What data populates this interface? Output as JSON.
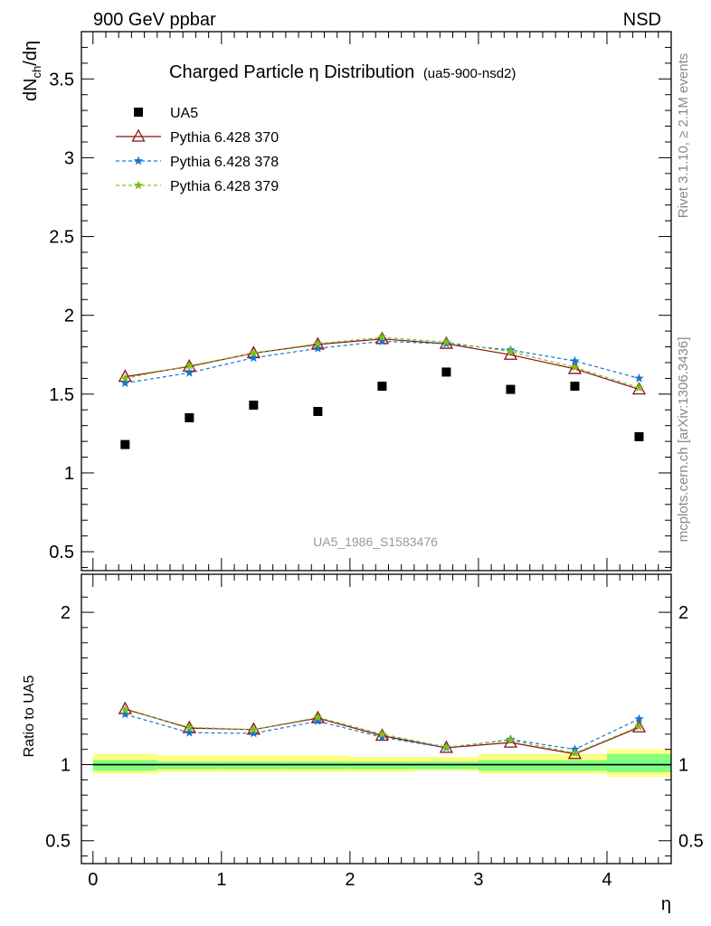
{
  "header": {
    "left_label": "900 GeV ppbar",
    "right_label": "NSD"
  },
  "side_labels": {
    "rivet": "Rivet 3.1.10, ≥ 2.1M events",
    "mcplots": "mcplots.cern.ch [arXiv:1306.3436]"
  },
  "chart_data": [
    {
      "type": "scatter",
      "panel": "main",
      "title_main": "Charged Particle η Distribution",
      "title_sub": "(ua5-900-nsd2)",
      "watermark": "UA5_1986_S1583476",
      "ylabel": "dN",
      "ylabel_sub": "ch",
      "ylabel_tail": "/dη",
      "ylim": [
        0.38,
        3.8
      ],
      "xlim": [
        -0.09,
        4.5
      ],
      "yticks": [
        0.5,
        1,
        1.5,
        2,
        2.5,
        3,
        3.5
      ],
      "ytick_labels": [
        "0.5",
        "1",
        "1.5",
        "2",
        "2.5",
        "3",
        "3.5"
      ],
      "x": [
        0.25,
        0.75,
        1.25,
        1.75,
        2.25,
        2.75,
        3.25,
        3.75,
        4.25
      ],
      "legend_position": "top-left",
      "series": [
        {
          "name": "UA5",
          "marker": "square",
          "color": "#000000",
          "line": "none",
          "values": [
            1.18,
            1.35,
            1.43,
            1.39,
            1.55,
            1.64,
            1.53,
            1.55,
            1.23
          ]
        },
        {
          "name": "Pythia 6.428 370",
          "marker": "triangle-open",
          "color": "#8b0f14",
          "line": "solid",
          "values": [
            1.61,
            1.675,
            1.76,
            1.815,
            1.85,
            1.82,
            1.75,
            1.66,
            1.53
          ]
        },
        {
          "name": "Pythia 6.428 378",
          "marker": "star",
          "color": "#1874cd",
          "line": "dashed",
          "values": [
            1.57,
            1.635,
            1.73,
            1.79,
            1.835,
            1.82,
            1.78,
            1.71,
            1.6
          ]
        },
        {
          "name": "Pythia 6.428 379",
          "marker": "star",
          "color": "#7fbf1f",
          "line": "dashed",
          "values": [
            1.6,
            1.68,
            1.76,
            1.82,
            1.86,
            1.83,
            1.77,
            1.67,
            1.54
          ]
        }
      ]
    },
    {
      "type": "line",
      "panel": "ratio",
      "ylabel": "Ratio to UA5",
      "xlabel": "η",
      "ylim": [
        0.35,
        2.25
      ],
      "xlim": [
        -0.09,
        4.5
      ],
      "yticks": [
        0.5,
        1,
        2
      ],
      "ytick_labels": [
        "0.5",
        "1",
        "2"
      ],
      "xticks": [
        0,
        1,
        2,
        3,
        4
      ],
      "xtick_labels": [
        "0",
        "1",
        "2",
        "3",
        "4"
      ],
      "bins": [
        [
          0,
          0.5
        ],
        [
          0.5,
          1.0
        ],
        [
          1.0,
          1.5
        ],
        [
          1.5,
          2.0
        ],
        [
          2.0,
          2.5
        ],
        [
          2.5,
          3.0
        ],
        [
          3.0,
          3.5
        ],
        [
          3.5,
          4.0
        ],
        [
          4.0,
          4.5
        ]
      ],
      "band_stat": [
        [
          0.96,
          1.03
        ],
        [
          0.97,
          1.02
        ],
        [
          0.97,
          1.02
        ],
        [
          0.97,
          1.02
        ],
        [
          0.97,
          1.02
        ],
        [
          0.97,
          1.02
        ],
        [
          0.96,
          1.03
        ],
        [
          0.96,
          1.03
        ],
        [
          0.95,
          1.07
        ]
      ],
      "band_total": [
        [
          0.94,
          1.07
        ],
        [
          0.95,
          1.06
        ],
        [
          0.95,
          1.06
        ],
        [
          0.95,
          1.06
        ],
        [
          0.95,
          1.05
        ],
        [
          0.96,
          1.05
        ],
        [
          0.94,
          1.07
        ],
        [
          0.94,
          1.07
        ],
        [
          0.92,
          1.1
        ]
      ],
      "band_colors": {
        "total": "#ffff80",
        "stat": "#80ff80"
      },
      "x": [
        0.25,
        0.75,
        1.25,
        1.75,
        2.25,
        2.75,
        3.25,
        3.75,
        4.25
      ],
      "series": [
        {
          "name": "Pythia 6.428 370",
          "marker": "triangle-open",
          "color": "#8b0f14",
          "line": "solid",
          "values": [
            1.365,
            1.24,
            1.23,
            1.305,
            1.19,
            1.11,
            1.145,
            1.07,
            1.245
          ]
        },
        {
          "name": "Pythia 6.428 378",
          "marker": "star",
          "color": "#1874cd",
          "line": "dashed",
          "values": [
            1.33,
            1.21,
            1.205,
            1.285,
            1.18,
            1.11,
            1.165,
            1.1,
            1.3
          ]
        },
        {
          "name": "Pythia 6.428 379",
          "marker": "star",
          "color": "#7fbf1f",
          "line": "dashed",
          "values": [
            1.36,
            1.245,
            1.23,
            1.31,
            1.2,
            1.115,
            1.16,
            1.075,
            1.25
          ]
        }
      ]
    }
  ]
}
